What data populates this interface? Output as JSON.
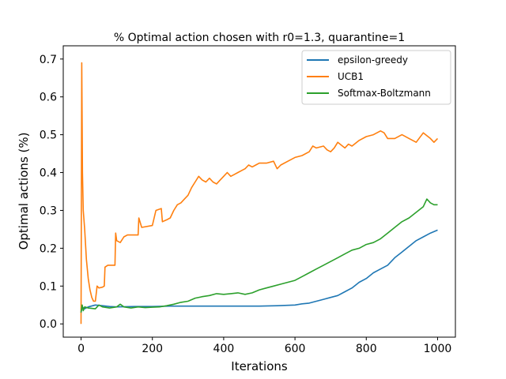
{
  "chart_data": {
    "type": "line",
    "title": "% Optimal action chosen with r0=1.3, quarantine=1",
    "xlabel": "Iterations",
    "ylabel": "Optimal actions (%)",
    "xlim": [
      -50,
      1050
    ],
    "ylim": [
      -0.035,
      0.735
    ],
    "xticks": [
      0,
      200,
      400,
      600,
      800,
      1000
    ],
    "yticks": [
      0.0,
      0.1,
      0.2,
      0.3,
      0.4,
      0.5,
      0.6,
      0.7
    ],
    "xtick_labels": [
      "0",
      "200",
      "400",
      "600",
      "800",
      "1000"
    ],
    "ytick_labels": [
      "0.0",
      "0.1",
      "0.2",
      "0.3",
      "0.4",
      "0.5",
      "0.6",
      "0.7"
    ],
    "grid": false,
    "legend_position": "top-right",
    "series": [
      {
        "name": "epsilon-greedy",
        "color": "#1f77b4",
        "points": [
          [
            0,
            0.03
          ],
          [
            3,
            0.045
          ],
          [
            10,
            0.04
          ],
          [
            20,
            0.045
          ],
          [
            40,
            0.05
          ],
          [
            60,
            0.048
          ],
          [
            80,
            0.046
          ],
          [
            100,
            0.045
          ],
          [
            150,
            0.046
          ],
          [
            200,
            0.046
          ],
          [
            250,
            0.047
          ],
          [
            300,
            0.047
          ],
          [
            350,
            0.047
          ],
          [
            400,
            0.047
          ],
          [
            450,
            0.047
          ],
          [
            500,
            0.047
          ],
          [
            550,
            0.048
          ],
          [
            600,
            0.05
          ],
          [
            620,
            0.053
          ],
          [
            640,
            0.055
          ],
          [
            660,
            0.06
          ],
          [
            680,
            0.065
          ],
          [
            700,
            0.07
          ],
          [
            720,
            0.075
          ],
          [
            740,
            0.085
          ],
          [
            760,
            0.095
          ],
          [
            780,
            0.11
          ],
          [
            800,
            0.12
          ],
          [
            820,
            0.135
          ],
          [
            840,
            0.145
          ],
          [
            860,
            0.155
          ],
          [
            880,
            0.175
          ],
          [
            900,
            0.19
          ],
          [
            920,
            0.205
          ],
          [
            940,
            0.22
          ],
          [
            960,
            0.23
          ],
          [
            980,
            0.24
          ],
          [
            1000,
            0.248
          ]
        ]
      },
      {
        "name": "UCB1",
        "color": "#ff7f0e",
        "points": [
          [
            0,
            0.0
          ],
          [
            2,
            0.69
          ],
          [
            4,
            0.4
          ],
          [
            6,
            0.3
          ],
          [
            10,
            0.25
          ],
          [
            15,
            0.17
          ],
          [
            20,
            0.12
          ],
          [
            25,
            0.09
          ],
          [
            30,
            0.07
          ],
          [
            35,
            0.06
          ],
          [
            40,
            0.06
          ],
          [
            45,
            0.1
          ],
          [
            50,
            0.095
          ],
          [
            60,
            0.097
          ],
          [
            65,
            0.1
          ],
          [
            67,
            0.15
          ],
          [
            75,
            0.155
          ],
          [
            95,
            0.155
          ],
          [
            97,
            0.24
          ],
          [
            100,
            0.22
          ],
          [
            110,
            0.215
          ],
          [
            120,
            0.23
          ],
          [
            130,
            0.235
          ],
          [
            160,
            0.235
          ],
          [
            162,
            0.28
          ],
          [
            170,
            0.255
          ],
          [
            200,
            0.26
          ],
          [
            210,
            0.3
          ],
          [
            225,
            0.305
          ],
          [
            228,
            0.27
          ],
          [
            240,
            0.275
          ],
          [
            250,
            0.28
          ],
          [
            260,
            0.3
          ],
          [
            270,
            0.315
          ],
          [
            280,
            0.32
          ],
          [
            290,
            0.33
          ],
          [
            300,
            0.34
          ],
          [
            310,
            0.36
          ],
          [
            320,
            0.375
          ],
          [
            330,
            0.39
          ],
          [
            340,
            0.38
          ],
          [
            350,
            0.375
          ],
          [
            360,
            0.385
          ],
          [
            370,
            0.375
          ],
          [
            380,
            0.37
          ],
          [
            390,
            0.38
          ],
          [
            400,
            0.39
          ],
          [
            410,
            0.4
          ],
          [
            420,
            0.39
          ],
          [
            430,
            0.395
          ],
          [
            440,
            0.4
          ],
          [
            450,
            0.405
          ],
          [
            460,
            0.41
          ],
          [
            470,
            0.42
          ],
          [
            480,
            0.415
          ],
          [
            490,
            0.42
          ],
          [
            500,
            0.425
          ],
          [
            520,
            0.425
          ],
          [
            540,
            0.43
          ],
          [
            550,
            0.41
          ],
          [
            560,
            0.42
          ],
          [
            580,
            0.43
          ],
          [
            600,
            0.44
          ],
          [
            620,
            0.445
          ],
          [
            640,
            0.455
          ],
          [
            650,
            0.47
          ],
          [
            660,
            0.465
          ],
          [
            680,
            0.47
          ],
          [
            690,
            0.46
          ],
          [
            700,
            0.455
          ],
          [
            710,
            0.465
          ],
          [
            720,
            0.48
          ],
          [
            740,
            0.465
          ],
          [
            750,
            0.475
          ],
          [
            760,
            0.47
          ],
          [
            780,
            0.485
          ],
          [
            800,
            0.495
          ],
          [
            820,
            0.5
          ],
          [
            840,
            0.51
          ],
          [
            850,
            0.505
          ],
          [
            860,
            0.49
          ],
          [
            880,
            0.49
          ],
          [
            900,
            0.5
          ],
          [
            920,
            0.49
          ],
          [
            940,
            0.48
          ],
          [
            960,
            0.505
          ],
          [
            980,
            0.49
          ],
          [
            990,
            0.48
          ],
          [
            1000,
            0.49
          ]
        ]
      },
      {
        "name": "Softmax-Boltzmann",
        "color": "#2ca02c",
        "points": [
          [
            0,
            0.03
          ],
          [
            3,
            0.05
          ],
          [
            6,
            0.035
          ],
          [
            10,
            0.045
          ],
          [
            20,
            0.042
          ],
          [
            40,
            0.04
          ],
          [
            50,
            0.05
          ],
          [
            60,
            0.045
          ],
          [
            80,
            0.042
          ],
          [
            100,
            0.045
          ],
          [
            110,
            0.052
          ],
          [
            120,
            0.045
          ],
          [
            140,
            0.042
          ],
          [
            160,
            0.045
          ],
          [
            180,
            0.043
          ],
          [
            200,
            0.044
          ],
          [
            220,
            0.045
          ],
          [
            240,
            0.048
          ],
          [
            260,
            0.052
          ],
          [
            280,
            0.057
          ],
          [
            300,
            0.06
          ],
          [
            320,
            0.068
          ],
          [
            340,
            0.072
          ],
          [
            360,
            0.075
          ],
          [
            380,
            0.08
          ],
          [
            400,
            0.078
          ],
          [
            420,
            0.08
          ],
          [
            440,
            0.082
          ],
          [
            460,
            0.078
          ],
          [
            480,
            0.082
          ],
          [
            500,
            0.09
          ],
          [
            520,
            0.095
          ],
          [
            540,
            0.1
          ],
          [
            560,
            0.105
          ],
          [
            580,
            0.11
          ],
          [
            600,
            0.115
          ],
          [
            620,
            0.125
          ],
          [
            640,
            0.135
          ],
          [
            660,
            0.145
          ],
          [
            680,
            0.155
          ],
          [
            700,
            0.165
          ],
          [
            720,
            0.175
          ],
          [
            740,
            0.185
          ],
          [
            760,
            0.195
          ],
          [
            780,
            0.2
          ],
          [
            800,
            0.21
          ],
          [
            820,
            0.215
          ],
          [
            840,
            0.225
          ],
          [
            860,
            0.24
          ],
          [
            880,
            0.255
          ],
          [
            900,
            0.27
          ],
          [
            920,
            0.28
          ],
          [
            940,
            0.295
          ],
          [
            960,
            0.31
          ],
          [
            970,
            0.33
          ],
          [
            980,
            0.32
          ],
          [
            990,
            0.315
          ],
          [
            1000,
            0.315
          ]
        ]
      }
    ]
  }
}
